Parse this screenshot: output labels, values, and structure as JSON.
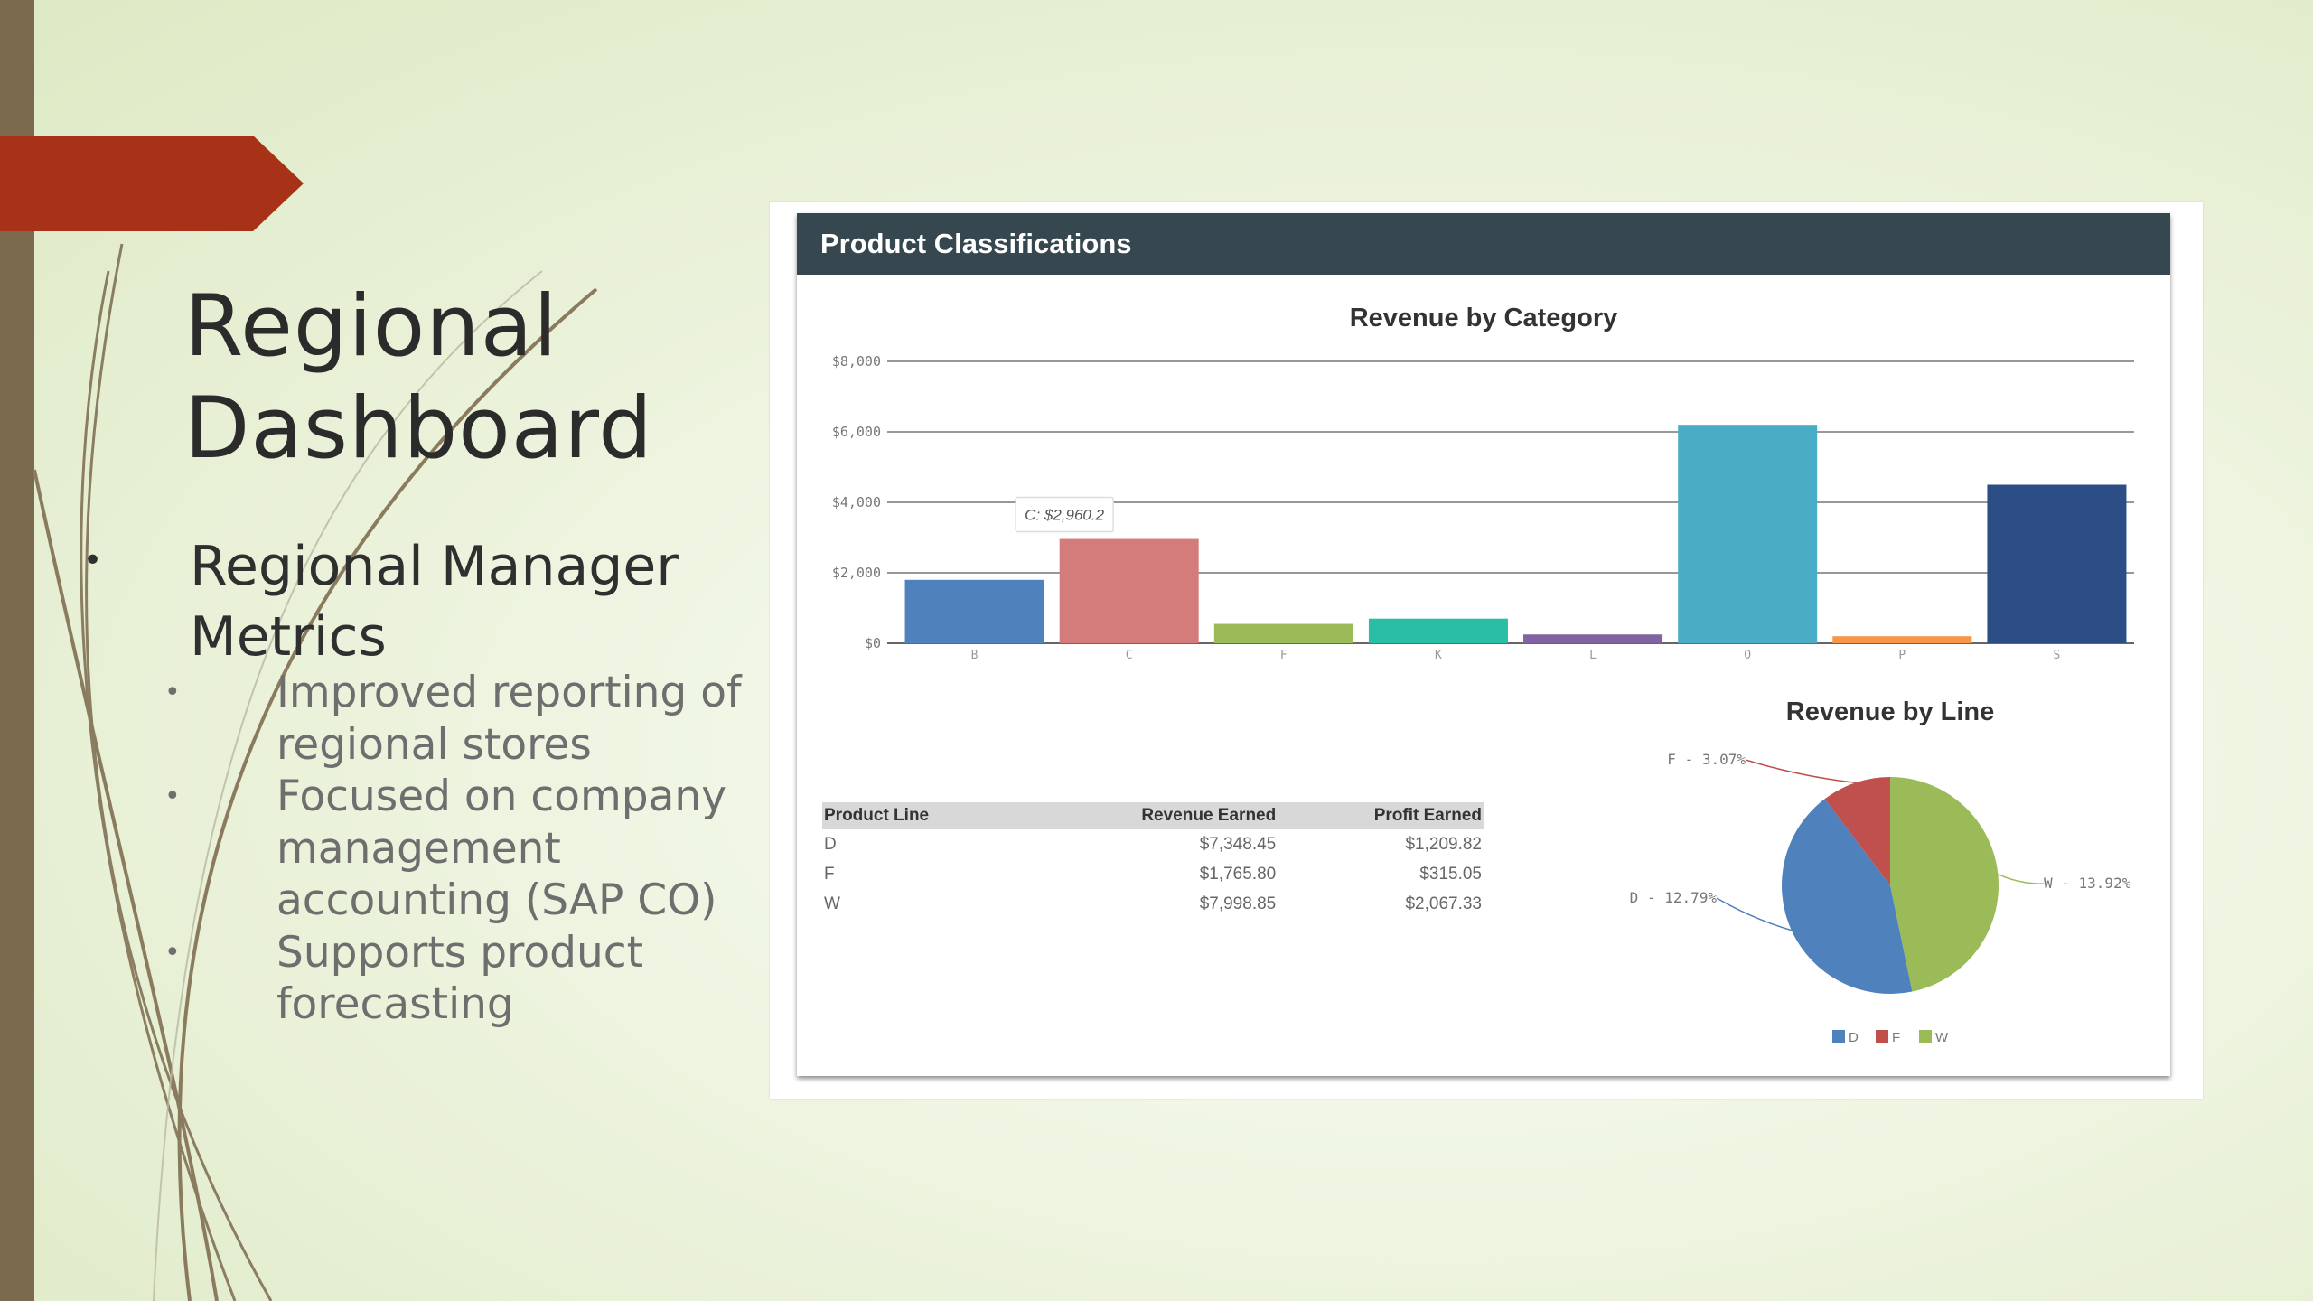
{
  "slide": {
    "title_line1": "Regional",
    "title_line2": "Dashboard",
    "bullet_main": "Regional Manager Metrics",
    "sub_bullets": [
      "Improved reporting of regional stores",
      "Focused on company management accounting (SAP CO)",
      "Supports product forecasting"
    ],
    "colors": {
      "left_bar": "#7b6a4e",
      "accent_arrow": "#a83217",
      "title_text": "#2b2b2b",
      "sub_text": "#6e6e6e"
    }
  },
  "dashboard": {
    "panel_title": "Product Classifications",
    "header_color": "#37474f",
    "table": {
      "headers": [
        "Product Line",
        "Revenue Earned",
        "Profit Earned"
      ],
      "rows": [
        [
          "D",
          "$7,348.45",
          "$1,209.82"
        ],
        [
          "F",
          "$1,765.80",
          "$315.05"
        ],
        [
          "W",
          "$7,998.85",
          "$2,067.33"
        ]
      ]
    }
  },
  "chart_data": [
    {
      "type": "bar",
      "title": "Revenue by Category",
      "categories": [
        "B",
        "C",
        "F",
        "K",
        "L",
        "O",
        "P",
        "S"
      ],
      "values": [
        1800,
        2960.2,
        550,
        700,
        250,
        6200,
        200,
        4500
      ],
      "colors": [
        "#4f81bd",
        "#d47b7b",
        "#9bbb59",
        "#2abfa4",
        "#8064a2",
        "#4bacc6",
        "#f79646",
        "#2c4d86"
      ],
      "ylim": [
        0,
        8000
      ],
      "yticks": [
        "$0",
        "$2,000",
        "$4,000",
        "$6,000",
        "$8,000"
      ],
      "tooltip": "C: $2,960.2",
      "grid": true
    },
    {
      "type": "pie",
      "title": "Revenue by Line",
      "categories": [
        "D",
        "F",
        "W"
      ],
      "values": [
        12.79,
        3.07,
        13.92
      ],
      "colors": [
        "#4f81bd",
        "#c0504d",
        "#9bbb59"
      ],
      "labels": [
        "D - 12.79%",
        "F - 3.07%",
        "W - 13.92%"
      ],
      "legend": "bottom"
    }
  ]
}
